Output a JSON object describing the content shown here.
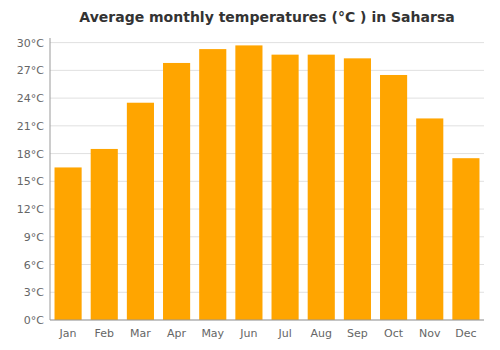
{
  "chart_data": {
    "type": "bar",
    "title": "Average monthly temperatures (°C ) in Saharsa",
    "categories": [
      "Jan",
      "Feb",
      "Mar",
      "Apr",
      "May",
      "Jun",
      "Jul",
      "Aug",
      "Sep",
      "Oct",
      "Nov",
      "Dec"
    ],
    "values": [
      16.5,
      18.5,
      23.5,
      27.8,
      29.3,
      29.7,
      28.7,
      28.7,
      28.3,
      26.5,
      21.8,
      17.5
    ],
    "color": "#FFA500",
    "ylim": [
      0,
      30.5
    ],
    "yticks": [
      {
        "value": 0,
        "label": "0°C"
      },
      {
        "value": 3,
        "label": "3°C"
      },
      {
        "value": 6,
        "label": "6°C"
      },
      {
        "value": 9,
        "label": "9°C"
      },
      {
        "value": 12,
        "label": "12°C"
      },
      {
        "value": 15,
        "label": "15°C"
      },
      {
        "value": 18,
        "label": "18°C"
      },
      {
        "value": 21,
        "label": "21°C"
      },
      {
        "value": 24,
        "label": "24°C"
      },
      {
        "value": 27,
        "label": "27°C"
      },
      {
        "value": 30,
        "label": "30°C"
      }
    ],
    "grid": true
  }
}
